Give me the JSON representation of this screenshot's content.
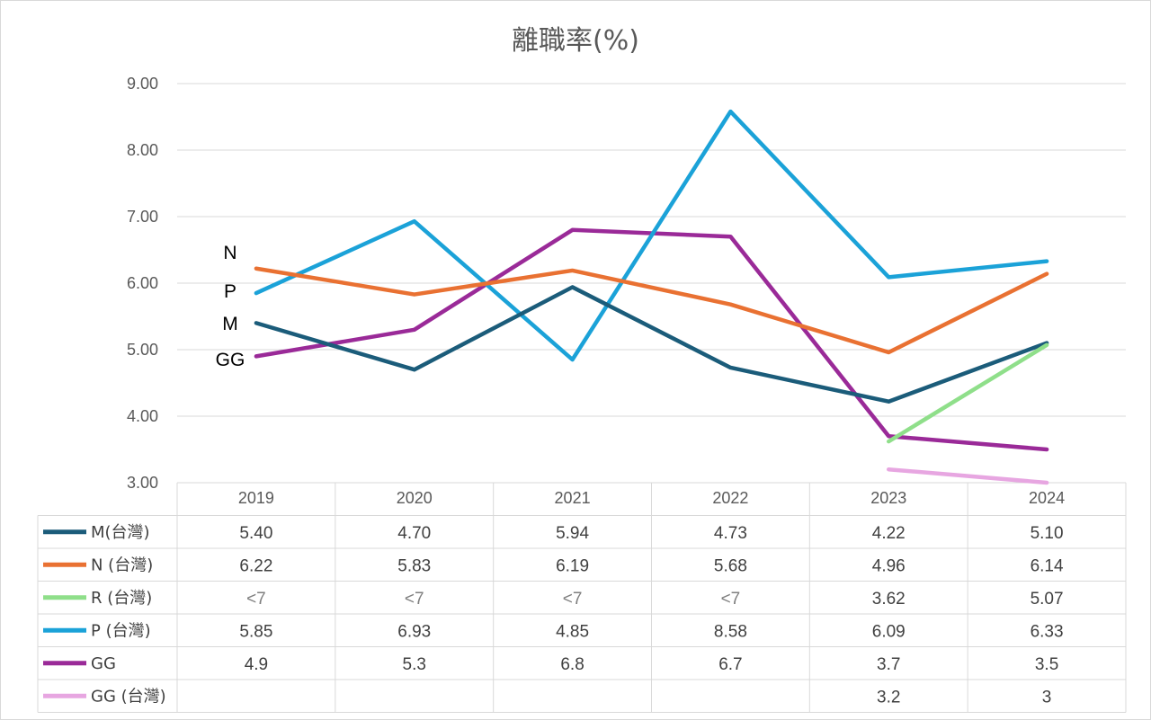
{
  "chart_data": {
    "type": "line",
    "title": "離職率(%)",
    "categories": [
      "2019",
      "2020",
      "2021",
      "2022",
      "2023",
      "2024"
    ],
    "ylim": [
      3.0,
      9.0
    ],
    "yticks": [
      "3.00",
      "4.00",
      "5.00",
      "6.00",
      "7.00",
      "8.00",
      "9.00"
    ],
    "grid": true,
    "legend": "data-table",
    "series": [
      {
        "name": "M(台灣)",
        "color": "#1b5c7a",
        "values": [
          5.4,
          4.7,
          5.94,
          4.73,
          4.22,
          5.1
        ],
        "labels": [
          "5.40",
          "4.70",
          "5.94",
          "4.73",
          "4.22",
          "5.10"
        ]
      },
      {
        "name": "N (台灣)",
        "color": "#e97132",
        "values": [
          6.22,
          5.83,
          6.19,
          5.68,
          4.96,
          6.14
        ],
        "labels": [
          "6.22",
          "5.83",
          "6.19",
          "5.68",
          "4.96",
          "6.14"
        ]
      },
      {
        "name": "R (台灣)",
        "color": "#8fdf8a",
        "values": [
          null,
          null,
          null,
          null,
          3.62,
          5.07
        ],
        "labels": [
          "<7",
          "<7",
          "<7",
          "<7",
          "3.62",
          "5.07"
        ]
      },
      {
        "name": "P (台灣)",
        "color": "#1ba2d8",
        "values": [
          5.85,
          6.93,
          4.85,
          8.58,
          6.09,
          6.33
        ],
        "labels": [
          "5.85",
          "6.93",
          "4.85",
          "8.58",
          "6.09",
          "6.33"
        ]
      },
      {
        "name": "GG",
        "color": "#9a2a98",
        "values": [
          4.9,
          5.3,
          6.8,
          6.7,
          3.7,
          3.5
        ],
        "labels": [
          "4.9",
          "5.3",
          "6.8",
          "6.7",
          "3.7",
          "3.5"
        ]
      },
      {
        "name": "GG (台灣)",
        "color": "#e7a6e1",
        "values": [
          null,
          null,
          null,
          null,
          3.2,
          3.0
        ],
        "labels": [
          "",
          "",
          "",
          "",
          "3.2",
          "3"
        ]
      }
    ],
    "annotations": [
      "N",
      "P",
      "M",
      "GG"
    ]
  }
}
